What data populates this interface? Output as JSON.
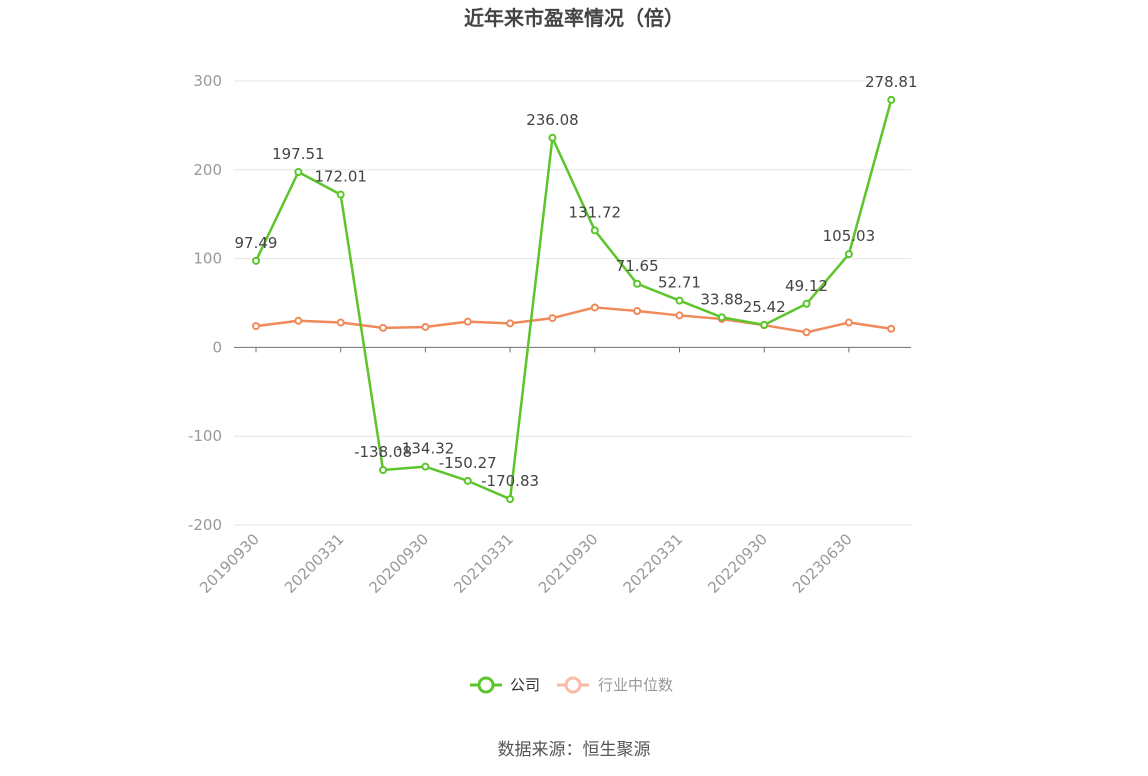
{
  "chart_data": {
    "type": "line",
    "title": "近年来市盈率情况（倍）",
    "source": "数据来源：恒生聚源",
    "ylim": [
      -200,
      300
    ],
    "yticks": [
      "300",
      "200",
      "100",
      "0",
      "-100",
      "-200"
    ],
    "ytick_values": [
      300,
      200,
      100,
      0,
      -100,
      -200
    ],
    "xtick_labels": [
      "20190930",
      "20200331",
      "20200930",
      "20210331",
      "20210930",
      "20220331",
      "20220930",
      "20230630"
    ],
    "point_count": 16,
    "legend_position": "bottom-center",
    "grid": true,
    "series": [
      {
        "name": "公司",
        "color": "#5cc52b",
        "values": [
          97.49,
          197.51,
          172.01,
          -138.08,
          -134.32,
          -150.27,
          -170.83,
          236.08,
          131.72,
          71.65,
          52.71,
          33.88,
          25.42,
          49.12,
          105.03,
          278.81
        ],
        "labels": [
          "97.49",
          "197.51",
          "172.01",
          "-138.08",
          "-134.32",
          "-150.27",
          "-170.83",
          "236.08",
          "131.72",
          "71.65",
          "52.71",
          "33.88",
          "25.42",
          "49.12",
          "105.03",
          "278.81"
        ]
      },
      {
        "name": "行业中位数",
        "color": "#f08a5a",
        "legend_color": "#f8bba6",
        "values": [
          24,
          30,
          28,
          22,
          23,
          29,
          27,
          33,
          45,
          41,
          36,
          32,
          25,
          17,
          28,
          21
        ]
      }
    ]
  }
}
